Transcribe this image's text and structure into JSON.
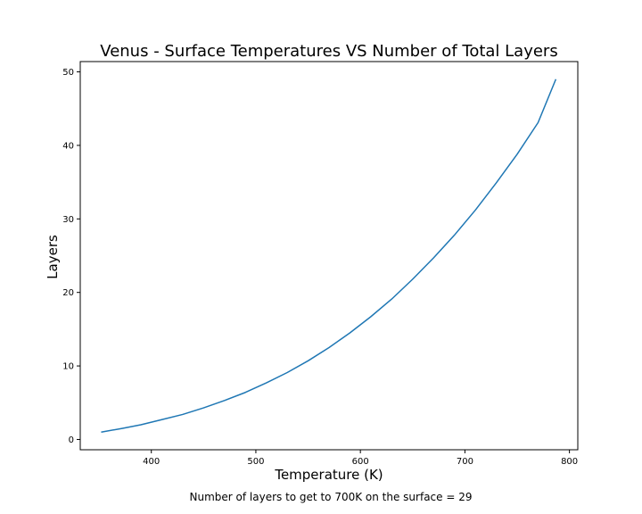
{
  "chart_data": {
    "type": "line",
    "title": "Venus - Surface Temperatures VS Number of Total Layers",
    "xlabel": "Temperature (K)",
    "ylabel": "Layers",
    "xlim": [
      332,
      808
    ],
    "ylim": [
      -1.4,
      51.4
    ],
    "xticks": [
      400,
      500,
      600,
      700,
      800
    ],
    "yticks": [
      0,
      10,
      20,
      30,
      40,
      50
    ],
    "grid": false,
    "series": [
      {
        "color": "#1f77b4",
        "x": [
          352,
          372,
          390,
          410,
          430,
          450,
          470,
          490,
          510,
          530,
          550,
          570,
          590,
          610,
          630,
          650,
          670,
          690,
          710,
          730,
          750,
          770,
          787
        ],
        "y": [
          1,
          1.5,
          2,
          2.7,
          3.4,
          4.3,
          5.3,
          6.4,
          7.7,
          9.1,
          10.7,
          12.5,
          14.5,
          16.7,
          19.1,
          21.8,
          24.7,
          27.8,
          31.2,
          34.9,
          38.8,
          43.1,
          49
        ]
      }
    ]
  },
  "caption": "Number of layers to get to 700K on the surface = 29"
}
